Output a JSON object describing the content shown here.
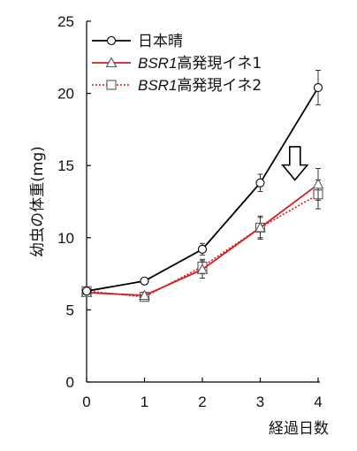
{
  "chart_data": {
    "type": "line",
    "title": "",
    "xlabel": "経過日数",
    "ylabel": "幼虫の体重(mg)",
    "x": [
      0,
      1,
      2,
      3,
      4
    ],
    "xlim": [
      0,
      4
    ],
    "ylim": [
      0,
      25
    ],
    "xticks": [
      "0",
      "1",
      "2",
      "3",
      "4"
    ],
    "yticks": [
      "0",
      "5",
      "10",
      "15",
      "20",
      "25"
    ],
    "grid": false,
    "legend_placement": "top-left",
    "series": [
      {
        "name": "日本晴",
        "name_italic": "",
        "name_rest": "日本晴",
        "values": [
          6.3,
          7.0,
          9.2,
          13.8,
          20.4
        ],
        "errors": [
          0.2,
          0.2,
          0.4,
          0.6,
          1.2
        ],
        "marker": "circle",
        "line_color": "#000000",
        "line_style": "solid"
      },
      {
        "name": "BSR1高発現イネ1",
        "name_italic": "BSR1",
        "name_rest": "高発現イネ1",
        "values": [
          6.2,
          6.0,
          7.8,
          10.7,
          13.7
        ],
        "errors": [
          0.2,
          0.2,
          0.6,
          0.8,
          1.1
        ],
        "marker": "triangle",
        "line_color": "#d11f1f",
        "line_style": "solid"
      },
      {
        "name": "BSR1高発現イネ2",
        "name_italic": "BSR1",
        "name_rest": "高発現イネ2",
        "values": [
          6.3,
          5.9,
          8.0,
          10.7,
          13.0
        ],
        "errors": [
          0.2,
          0.2,
          0.5,
          0.7,
          1.0
        ],
        "marker": "square",
        "line_color": "#d11f1f",
        "line_style": "dotted"
      }
    ],
    "annotation": {
      "type": "down-arrow",
      "x": 3.6,
      "y_top": 16.3,
      "y_bottom": 14.0
    }
  }
}
